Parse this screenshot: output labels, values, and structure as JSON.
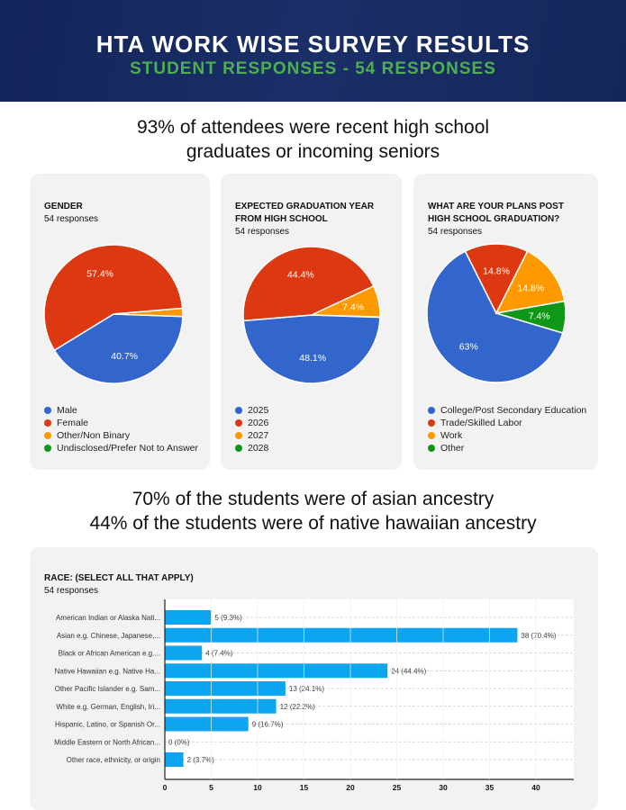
{
  "header": {
    "title": "HTA WORK WISE SURVEY RESULTS",
    "subtitle": "STUDENT RESPONSES - 54 RESPONSES"
  },
  "headline1": [
    "93% of attendees were recent high school",
    "graduates or incoming seniors"
  ],
  "headline2": [
    "70% of the students were of asian ancestry",
    "44% of the students were of native hawaiian ancestry"
  ],
  "colors": {
    "blue": "#3366cc",
    "red": "#dc3912",
    "orange": "#ff9900",
    "green": "#109618",
    "bar": "#0ea5f0"
  },
  "chart_data": [
    {
      "type": "pie",
      "title": [
        "GENDER"
      ],
      "subtitle": "54 responses",
      "start_angle_deg": 92,
      "slices": [
        {
          "label": "Male",
          "value": 40.7,
          "color": "#3366cc"
        },
        {
          "label": "Female",
          "value": 57.4,
          "color": "#dc3912"
        },
        {
          "label": "Other/Non Binary",
          "value": 1.9,
          "color": "#ff9900"
        },
        {
          "label": "Undisclosed/Prefer Not to Answer",
          "value": 0,
          "color": "#109618"
        }
      ]
    },
    {
      "type": "pie",
      "title": [
        "EXPECTED GRADUATION YEAR",
        "FROM HIGH SCHOOL"
      ],
      "subtitle": "54 responses",
      "start_angle_deg": 92,
      "slices": [
        {
          "label": "2025",
          "value": 48.1,
          "color": "#3366cc"
        },
        {
          "label": "2026",
          "value": 44.4,
          "color": "#dc3912"
        },
        {
          "label": "2027",
          "value": 7.4,
          "color": "#ff9900"
        },
        {
          "label": "2028",
          "value": 0,
          "color": "#109618"
        }
      ]
    },
    {
      "type": "pie",
      "title": [
        "WHAT ARE YOUR PLANS POST",
        "HIGH SCHOOL GRADUATION?"
      ],
      "subtitle": "54 responses",
      "start_angle_deg": 106.6,
      "slices": [
        {
          "label": "College/Post Secondary Education",
          "value": 63,
          "color": "#3366cc"
        },
        {
          "label": "Trade/Skilled Labor",
          "value": 14.8,
          "color": "#dc3912"
        },
        {
          "label": "Work",
          "value": 14.8,
          "color": "#ff9900"
        },
        {
          "label": "Other",
          "value": 7.4,
          "color": "#109618"
        }
      ]
    },
    {
      "type": "bar",
      "orientation": "horizontal",
      "title": "RACE: (SELECT ALL THAT APPLY)",
      "subtitle": "54 responses",
      "xlim": [
        0,
        44
      ],
      "xticks": [
        0,
        5,
        10,
        15,
        20,
        25,
        30,
        35,
        40
      ],
      "categories": [
        "American Indian or Alaska Nati...",
        "Asian e.g. Chinese, Japanese,...",
        "Black or African American e.g....",
        "Native Hawaiian e.g. Native Ha...",
        "Other Pacific Islander e.g. Sam...",
        "White e.g. German, English, Iri...",
        "Hispanic, Latino, or Spanish Or...",
        "Middle Eastern or North African...",
        "Other race, ethnicity, or origin"
      ],
      "values": [
        5,
        38,
        4,
        24,
        13,
        12,
        9,
        0,
        2
      ],
      "labels": [
        "5 (9.3%)",
        "38 (70.4%)",
        "4 (7.4%)",
        "24 (44.4%)",
        "13 (24.1%)",
        "12 (22.2%)",
        "9 (16.7%)",
        "0 (0%)",
        "2 (3.7%)"
      ]
    }
  ]
}
